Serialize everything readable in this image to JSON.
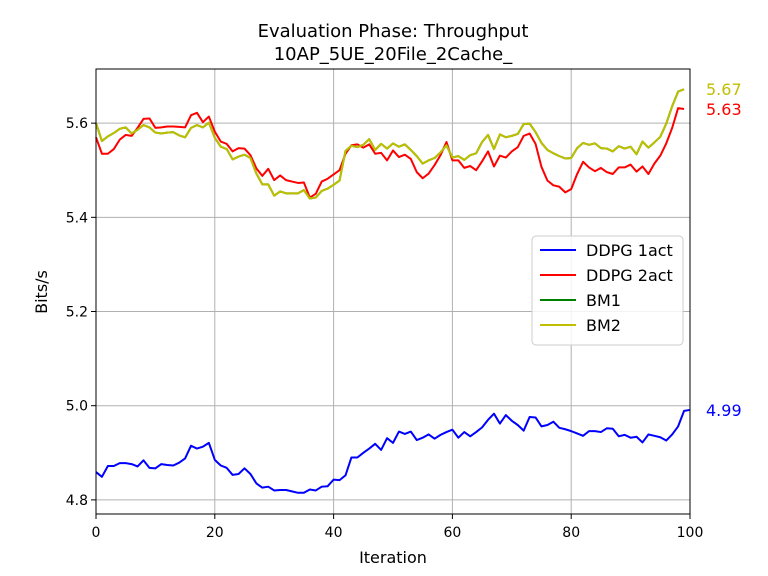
{
  "chart_data": {
    "type": "line",
    "title": "Evaluation Phase: Throughput",
    "subtitle": "10AP_5UE_20File_2Cache_",
    "xlabel": "Iteration",
    "ylabel": "Bits/s",
    "xlim": [
      0,
      100
    ],
    "ylim": [
      4.77,
      5.715
    ],
    "xticks": [
      0,
      20,
      40,
      60,
      80,
      100
    ],
    "yticks": [
      4.8,
      5.0,
      5.2,
      5.4,
      5.6
    ],
    "xtick_labels": [
      "0",
      "20",
      "40",
      "60",
      "80",
      "100"
    ],
    "ytick_labels": [
      "4.8",
      "5.0",
      "5.2",
      "5.4",
      "5.6"
    ],
    "grid": true,
    "legend_position": "center-right",
    "series": [
      {
        "name": "DDPG 1act",
        "color": "#0000ff",
        "end_label": "4.99",
        "values": [
          4.859,
          4.849,
          4.872,
          4.872,
          4.878,
          4.878,
          4.876,
          4.871,
          4.884,
          4.868,
          4.867,
          4.876,
          4.874,
          4.873,
          4.879,
          4.888,
          4.915,
          4.909,
          4.913,
          4.921,
          4.885,
          4.873,
          4.868,
          4.853,
          4.855,
          4.867,
          4.855,
          4.835,
          4.826,
          4.828,
          4.82,
          4.821,
          4.821,
          4.818,
          4.815,
          4.815,
          4.822,
          4.82,
          4.828,
          4.829,
          4.843,
          4.842,
          4.852,
          4.89,
          4.89,
          4.9,
          4.909,
          4.919,
          4.906,
          4.931,
          4.921,
          4.945,
          4.94,
          4.945,
          4.927,
          4.932,
          4.939,
          4.93,
          4.938,
          4.944,
          4.949,
          4.932,
          4.944,
          4.935,
          4.944,
          4.954,
          4.97,
          4.983,
          4.962,
          4.98,
          4.968,
          4.959,
          4.947,
          4.976,
          4.975,
          4.956,
          4.959,
          4.966,
          4.953,
          4.95,
          4.946,
          4.941,
          4.936,
          4.946,
          4.946,
          4.944,
          4.952,
          4.951,
          4.935,
          4.938,
          4.932,
          4.934,
          4.922,
          4.939,
          4.936,
          4.933,
          4.926,
          4.939,
          4.956,
          4.989,
          4.991
        ]
      },
      {
        "name": "DDPG 2act",
        "color": "#ff0000",
        "end_label": "5.63",
        "values": [
          5.57,
          5.535,
          5.535,
          5.545,
          5.565,
          5.575,
          5.573,
          5.59,
          5.609,
          5.61,
          5.59,
          5.591,
          5.593,
          5.593,
          5.592,
          5.591,
          5.617,
          5.622,
          5.602,
          5.614,
          5.582,
          5.561,
          5.556,
          5.54,
          5.547,
          5.546,
          5.532,
          5.504,
          5.488,
          5.503,
          5.479,
          5.489,
          5.479,
          5.476,
          5.473,
          5.474,
          5.442,
          5.45,
          5.476,
          5.482,
          5.491,
          5.5,
          5.535,
          5.553,
          5.555,
          5.548,
          5.555,
          5.535,
          5.537,
          5.521,
          5.542,
          5.528,
          5.533,
          5.524,
          5.496,
          5.483,
          5.493,
          5.511,
          5.532,
          5.56,
          5.521,
          5.521,
          5.505,
          5.509,
          5.5,
          5.519,
          5.54,
          5.508,
          5.531,
          5.527,
          5.54,
          5.549,
          5.573,
          5.578,
          5.556,
          5.507,
          5.478,
          5.468,
          5.465,
          5.453,
          5.46,
          5.492,
          5.518,
          5.506,
          5.498,
          5.505,
          5.496,
          5.492,
          5.506,
          5.506,
          5.512,
          5.497,
          5.508,
          5.492,
          5.514,
          5.531,
          5.557,
          5.59,
          5.632,
          5.63
        ]
      },
      {
        "name": "BM1",
        "color": "#008000",
        "end_label": "",
        "values": [
          5.6,
          5.562,
          5.572,
          5.579,
          5.588,
          5.591,
          5.578,
          5.586,
          5.596,
          5.591,
          5.58,
          5.578,
          5.58,
          5.581,
          5.574,
          5.57,
          5.59,
          5.596,
          5.591,
          5.601,
          5.569,
          5.55,
          5.545,
          5.523,
          5.529,
          5.533,
          5.526,
          5.493,
          5.47,
          5.47,
          5.446,
          5.455,
          5.451,
          5.451,
          5.451,
          5.458,
          5.44,
          5.442,
          5.456,
          5.461,
          5.469,
          5.478,
          5.541,
          5.552,
          5.549,
          5.554,
          5.566,
          5.543,
          5.556,
          5.546,
          5.557,
          5.55,
          5.555,
          5.543,
          5.53,
          5.514,
          5.521,
          5.526,
          5.538,
          5.553,
          5.527,
          5.53,
          5.522,
          5.532,
          5.536,
          5.56,
          5.575,
          5.545,
          5.576,
          5.57,
          5.573,
          5.577,
          5.598,
          5.599,
          5.581,
          5.558,
          5.543,
          5.536,
          5.53,
          5.525,
          5.526,
          5.547,
          5.558,
          5.554,
          5.557,
          5.547,
          5.546,
          5.54,
          5.551,
          5.546,
          5.55,
          5.534,
          5.561,
          5.548,
          5.559,
          5.571,
          5.599,
          5.636,
          5.667,
          5.672
        ]
      },
      {
        "name": "BM2",
        "color": "#bfbf00",
        "end_label": "5.67",
        "values": [
          5.6,
          5.562,
          5.572,
          5.579,
          5.588,
          5.591,
          5.578,
          5.586,
          5.596,
          5.591,
          5.58,
          5.578,
          5.58,
          5.581,
          5.574,
          5.57,
          5.59,
          5.596,
          5.591,
          5.601,
          5.569,
          5.55,
          5.545,
          5.523,
          5.529,
          5.533,
          5.526,
          5.493,
          5.47,
          5.47,
          5.446,
          5.455,
          5.451,
          5.451,
          5.451,
          5.458,
          5.44,
          5.442,
          5.456,
          5.461,
          5.469,
          5.478,
          5.541,
          5.552,
          5.549,
          5.554,
          5.566,
          5.543,
          5.556,
          5.546,
          5.557,
          5.55,
          5.555,
          5.543,
          5.53,
          5.514,
          5.521,
          5.526,
          5.538,
          5.553,
          5.527,
          5.53,
          5.522,
          5.532,
          5.536,
          5.56,
          5.575,
          5.545,
          5.576,
          5.57,
          5.573,
          5.577,
          5.598,
          5.599,
          5.581,
          5.558,
          5.543,
          5.536,
          5.53,
          5.525,
          5.526,
          5.547,
          5.558,
          5.554,
          5.557,
          5.547,
          5.546,
          5.54,
          5.551,
          5.546,
          5.55,
          5.534,
          5.561,
          5.548,
          5.559,
          5.571,
          5.599,
          5.636,
          5.667,
          5.672
        ]
      }
    ]
  }
}
